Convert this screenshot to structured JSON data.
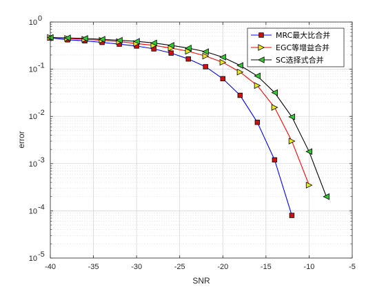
{
  "chart_data": {
    "type": "line",
    "title": "",
    "xlabel": "SNR",
    "ylabel": "error",
    "xlim": [
      -40,
      -5
    ],
    "ylim": [
      1e-05,
      1
    ],
    "yscale": "log",
    "grid": true,
    "minor_grid": true,
    "legend_position": "top-right",
    "x_ticks": [
      -40,
      -35,
      -30,
      -25,
      -20,
      -15,
      -10,
      -5
    ],
    "x_tick_labels": [
      "-40",
      "-35",
      "-30",
      "-25",
      "-20",
      "-15",
      "-10",
      "-5"
    ],
    "y_ticks": [
      {
        "value": 1e-05,
        "base": "10",
        "exp": "-5"
      },
      {
        "value": 0.0001,
        "base": "10",
        "exp": "-4"
      },
      {
        "value": 0.001,
        "base": "10",
        "exp": "-3"
      },
      {
        "value": 0.01,
        "base": "10",
        "exp": "-2"
      },
      {
        "value": 0.1,
        "base": "10",
        "exp": "-1"
      },
      {
        "value": 1,
        "base": "10",
        "exp": "0"
      }
    ],
    "series": [
      {
        "name": "MRC最大比合并",
        "color": "#0000ff",
        "marker": "square",
        "marker_fill": "#d01010",
        "x": [
          -40,
          -38,
          -36,
          -34,
          -32,
          -30,
          -28,
          -26,
          -24,
          -22,
          -20,
          -18,
          -16,
          -14,
          -12
        ],
        "y": [
          0.46,
          0.42,
          0.4,
          0.37,
          0.34,
          0.31,
          0.27,
          0.22,
          0.165,
          0.113,
          0.063,
          0.028,
          0.0075,
          0.0012,
          8e-05
        ]
      },
      {
        "name": "EGC等增益合并",
        "color": "#ff0000",
        "marker": "triangle-right",
        "marker_fill": "#e8e81c",
        "x": [
          -40,
          -38,
          -36,
          -34,
          -32,
          -30,
          -28,
          -26,
          -24,
          -22,
          -20,
          -18,
          -16,
          -14,
          -12,
          -10
        ],
        "y": [
          0.47,
          0.45,
          0.43,
          0.41,
          0.385,
          0.35,
          0.32,
          0.28,
          0.24,
          0.19,
          0.14,
          0.087,
          0.045,
          0.0155,
          0.003,
          0.00035
        ]
      },
      {
        "name": "SC选择式合并",
        "color": "#000000",
        "marker": "triangle-left",
        "marker_fill": "#30c830",
        "x": [
          -40,
          -38,
          -36,
          -34,
          -32,
          -30,
          -28,
          -26,
          -24,
          -22,
          -20,
          -18,
          -16,
          -14,
          -12,
          -10,
          -8
        ],
        "y": [
          0.47,
          0.46,
          0.45,
          0.43,
          0.41,
          0.39,
          0.36,
          0.32,
          0.28,
          0.235,
          0.18,
          0.12,
          0.072,
          0.032,
          0.0098,
          0.0018,
          0.0002
        ]
      }
    ]
  }
}
